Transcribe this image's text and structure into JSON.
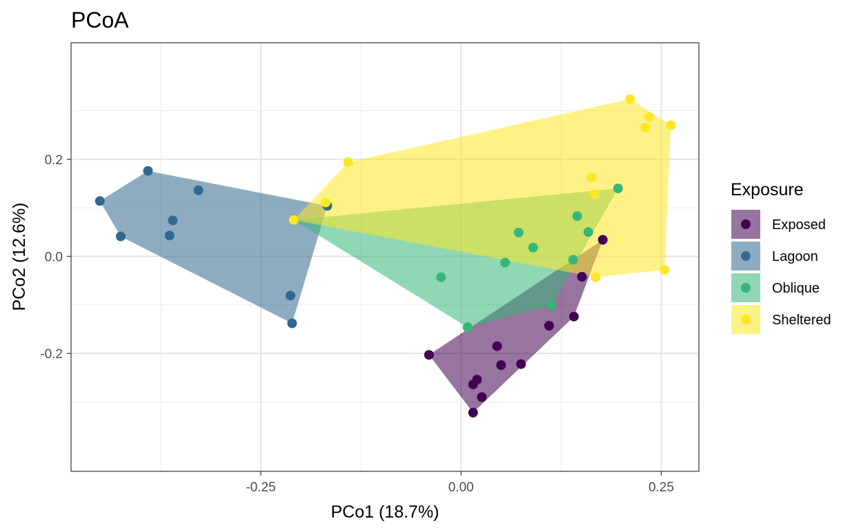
{
  "chart_data": {
    "type": "scatter",
    "title": "PCoA",
    "xlabel": "PCo1 (18.7%)",
    "ylabel": "PCo2 (12.6%)",
    "xlim": [
      -0.487,
      0.297
    ],
    "ylim": [
      -0.443,
      0.44
    ],
    "x_major_ticks": [
      -0.25,
      0.0,
      0.25
    ],
    "x_tick_labels": [
      "-0.25",
      "0.00",
      "0.25"
    ],
    "y_major_ticks": [
      -0.2,
      0.0,
      0.2
    ],
    "y_tick_labels": [
      "-0.2",
      "0.0",
      "0.2"
    ],
    "x_minor_ticks": [
      -0.375,
      -0.125,
      0.125
    ],
    "y_minor_ticks": [
      -0.3,
      -0.1,
      0.1,
      0.3
    ],
    "grid": true,
    "hulls": true,
    "legend": {
      "title": "Exposure",
      "position": "right"
    },
    "series": [
      {
        "name": "Exposed",
        "color": "#440154",
        "points": [
          {
            "x": -0.04,
            "y": -0.203
          },
          {
            "x": 0.015,
            "y": -0.322
          },
          {
            "x": 0.026,
            "y": -0.29
          },
          {
            "x": 0.02,
            "y": -0.254
          },
          {
            "x": 0.015,
            "y": -0.264
          },
          {
            "x": 0.05,
            "y": -0.224
          },
          {
            "x": 0.075,
            "y": -0.222
          },
          {
            "x": 0.045,
            "y": -0.185
          },
          {
            "x": 0.11,
            "y": -0.143
          },
          {
            "x": 0.141,
            "y": -0.124
          },
          {
            "x": 0.151,
            "y": -0.042
          },
          {
            "x": 0.177,
            "y": 0.034
          },
          {
            "x": 0.113,
            "y": -0.101
          }
        ]
      },
      {
        "name": "Lagoon",
        "color": "#31688E",
        "points": [
          {
            "x": -0.451,
            "y": 0.114
          },
          {
            "x": -0.391,
            "y": 0.176
          },
          {
            "x": -0.328,
            "y": 0.136
          },
          {
            "x": -0.36,
            "y": 0.074
          },
          {
            "x": -0.364,
            "y": 0.043
          },
          {
            "x": -0.425,
            "y": 0.041
          },
          {
            "x": -0.213,
            "y": -0.081
          },
          {
            "x": -0.211,
            "y": -0.138
          },
          {
            "x": -0.167,
            "y": 0.104
          }
        ]
      },
      {
        "name": "Oblique",
        "color": "#35B779",
        "points": [
          {
            "x": -0.025,
            "y": -0.043
          },
          {
            "x": 0.055,
            "y": -0.013
          },
          {
            "x": 0.008,
            "y": -0.146
          },
          {
            "x": 0.072,
            "y": 0.049
          },
          {
            "x": 0.09,
            "y": 0.018
          },
          {
            "x": 0.145,
            "y": 0.083
          },
          {
            "x": 0.159,
            "y": 0.05
          },
          {
            "x": 0.196,
            "y": 0.14
          },
          {
            "x": 0.14,
            "y": -0.007
          },
          {
            "x": 0.113,
            "y": -0.101
          },
          {
            "x": -0.209,
            "y": 0.075
          }
        ]
      },
      {
        "name": "Sheltered",
        "color": "#FDE725",
        "points": [
          {
            "x": -0.209,
            "y": 0.075
          },
          {
            "x": -0.169,
            "y": 0.111
          },
          {
            "x": -0.141,
            "y": 0.194
          },
          {
            "x": 0.211,
            "y": 0.324
          },
          {
            "x": 0.235,
            "y": 0.287
          },
          {
            "x": 0.23,
            "y": 0.265
          },
          {
            "x": 0.262,
            "y": 0.27
          },
          {
            "x": 0.163,
            "y": 0.163
          },
          {
            "x": 0.167,
            "y": 0.128
          },
          {
            "x": 0.254,
            "y": -0.028
          },
          {
            "x": 0.168,
            "y": -0.043
          }
        ]
      }
    ]
  }
}
